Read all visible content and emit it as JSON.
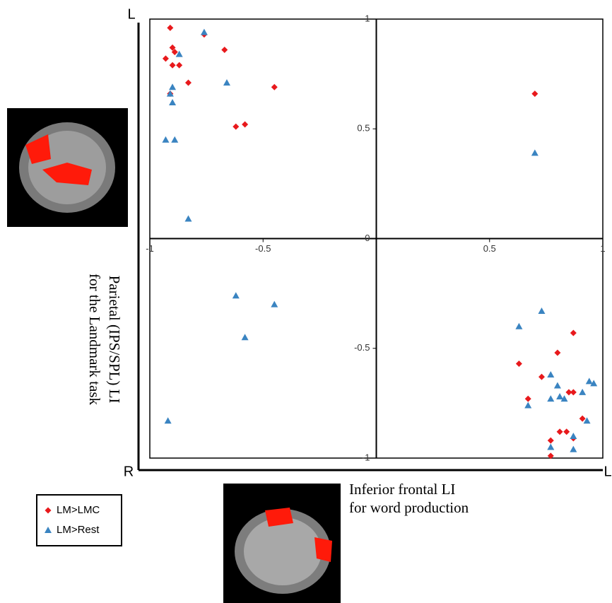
{
  "chart_data": {
    "type": "scatter",
    "xlabel": [
      "Inferior frontal LI",
      "for word production"
    ],
    "ylabel": [
      "Parietal (IPS/SPL) LI",
      "for the Landmark task"
    ],
    "annotations": [
      "L",
      "R",
      "L"
    ],
    "xlim": [
      -1,
      1
    ],
    "ylim": [
      -1,
      1
    ],
    "xticks": [
      -1,
      -0.5,
      0.5,
      1
    ],
    "yticks": [
      -1,
      -0.5,
      0,
      0.5,
      1
    ],
    "series": [
      {
        "name": "LM>LMC",
        "color": "#e8191c",
        "marker": "diamond",
        "x": [
          -0.91,
          -0.9,
          -0.89,
          -0.93,
          -0.9,
          -0.87,
          -0.76,
          -0.67,
          -0.83,
          -0.45,
          -0.91,
          -0.62,
          -0.58,
          0.7,
          0.63,
          0.73,
          0.8,
          0.87,
          0.67,
          0.85,
          0.87,
          0.91,
          0.81,
          0.84,
          0.77,
          0.87,
          0.77
        ],
        "values": [
          0.96,
          0.87,
          0.85,
          0.82,
          0.79,
          0.79,
          0.93,
          0.86,
          0.71,
          0.69,
          0.66,
          0.51,
          0.52,
          0.66,
          -0.57,
          -0.63,
          -0.52,
          -0.43,
          -0.73,
          -0.7,
          -0.7,
          -0.82,
          -0.88,
          -0.88,
          -0.92,
          -0.91,
          -0.99
        ]
      },
      {
        "name": "LM>Rest",
        "color": "#3a84c1",
        "marker": "triangle",
        "x": [
          -0.76,
          -0.87,
          -0.66,
          -0.9,
          -0.91,
          -0.9,
          -0.93,
          -0.89,
          -0.83,
          0.7,
          -0.62,
          -0.45,
          -0.58,
          -0.92,
          0.73,
          0.63,
          0.77,
          0.8,
          0.94,
          0.96,
          0.91,
          0.77,
          0.81,
          0.83,
          0.67,
          0.93,
          0.87,
          0.77,
          0.87
        ],
        "values": [
          0.94,
          0.84,
          0.71,
          0.69,
          0.66,
          0.62,
          0.45,
          0.45,
          0.09,
          0.39,
          -0.26,
          -0.3,
          -0.45,
          -0.83,
          -0.33,
          -0.4,
          -0.62,
          -0.67,
          -0.65,
          -0.66,
          -0.7,
          -0.73,
          -0.72,
          -0.73,
          -0.76,
          -0.83,
          -0.9,
          -0.95,
          -0.96
        ]
      }
    ]
  }
}
